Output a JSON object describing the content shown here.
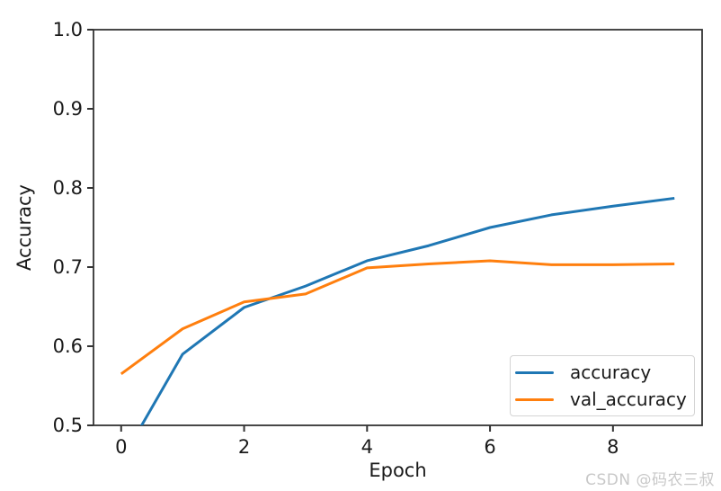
{
  "watermark": {
    "text": "CSDN @码农三叔",
    "color": "#c8c8c8"
  },
  "chart_data": {
    "type": "line",
    "title": "",
    "xlabel": "Epoch",
    "ylabel": "Accuracy",
    "x": [
      0,
      1,
      2,
      3,
      4,
      5,
      6,
      7,
      8,
      9
    ],
    "series": [
      {
        "name": "accuracy",
        "color": "#1f77b4",
        "values": [
          0.455,
          0.59,
          0.649,
          0.676,
          0.708,
          0.727,
          0.75,
          0.766,
          0.777,
          0.787
        ]
      },
      {
        "name": "val_accuracy",
        "color": "#ff7f0e",
        "values": [
          0.565,
          0.622,
          0.656,
          0.666,
          0.699,
          0.704,
          0.708,
          0.703,
          0.703,
          0.704
        ]
      }
    ],
    "xlim": [
      -0.45,
      9.45
    ],
    "ylim": [
      0.5,
      1.0
    ],
    "xticks": [
      0,
      2,
      4,
      6,
      8
    ],
    "yticks": [
      0.5,
      0.6,
      0.7,
      0.8,
      0.9,
      1.0
    ],
    "grid": false,
    "legend_position": "lower right",
    "axis_color": "#333333",
    "tick_label_color": "#1a1a1a"
  }
}
